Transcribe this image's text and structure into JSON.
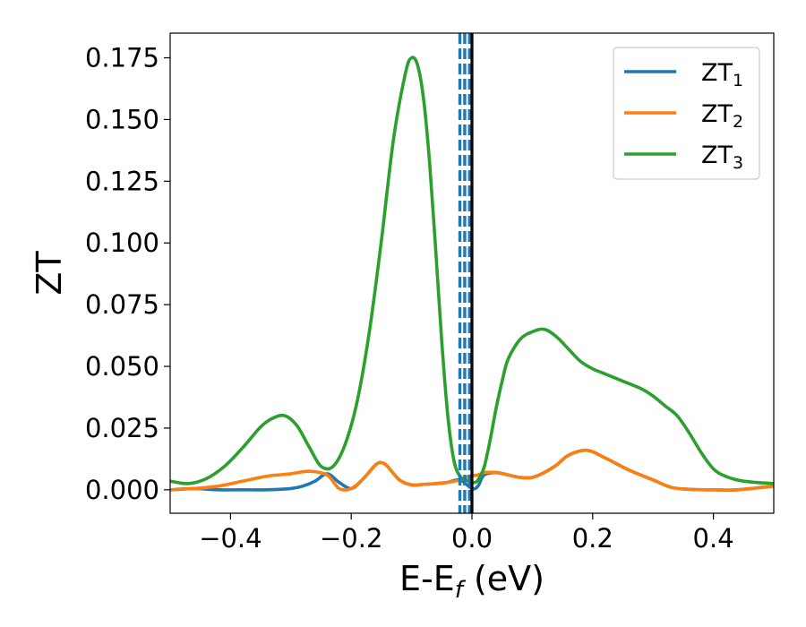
{
  "chart_data": {
    "type": "line",
    "xlabel": "E-E",
    "xlabel_sub": "f",
    "xlabel_unit": " (eV)",
    "ylabel": "ZT",
    "xlim": [
      -0.5,
      0.5
    ],
    "ylim": [
      -0.0095,
      0.185
    ],
    "xticks": [
      -0.4,
      -0.2,
      0.0,
      0.2,
      0.4
    ],
    "xtick_labels": [
      "−0.4",
      "−0.2",
      "0.0",
      "0.2",
      "0.4"
    ],
    "yticks": [
      0.0,
      0.025,
      0.05,
      0.075,
      0.1,
      0.125,
      0.15,
      0.175
    ],
    "ytick_labels": [
      "0.000",
      "0.025",
      "0.050",
      "0.075",
      "0.100",
      "0.125",
      "0.150",
      "0.175"
    ],
    "grid": false,
    "legend_position": "top-right",
    "vertical_lines": [
      {
        "x": -0.02,
        "style": "dashed",
        "color": "#1f77b4"
      },
      {
        "x": -0.012,
        "style": "dashed",
        "color": "#1f77b4"
      },
      {
        "x": -0.004,
        "style": "dashed",
        "color": "#1f77b4"
      },
      {
        "x": 0.0,
        "style": "solid",
        "color": "#000000"
      }
    ],
    "series": [
      {
        "name": "ZT",
        "sub": "1",
        "color": "#1f77b4",
        "x": [
          -0.5,
          -0.46,
          -0.42,
          -0.38,
          -0.34,
          -0.3,
          -0.28,
          -0.26,
          -0.24,
          -0.22,
          -0.2,
          -0.18,
          -0.16,
          -0.15,
          -0.14,
          -0.12,
          -0.1,
          -0.08,
          -0.06,
          -0.04,
          -0.02,
          0.0,
          0.01,
          0.02,
          0.04,
          0.06,
          0.08,
          0.1,
          0.12,
          0.14,
          0.16,
          0.19,
          0.22,
          0.26,
          0.3,
          0.33,
          0.36,
          0.4,
          0.44,
          0.5
        ],
        "y": [
          0.0,
          0.0005,
          0.0,
          0.0,
          0.0,
          0.0005,
          0.0015,
          0.0035,
          0.0065,
          0.003,
          0.0005,
          0.0045,
          0.01,
          0.011,
          0.0095,
          0.004,
          0.002,
          0.0022,
          0.0025,
          0.003,
          0.004,
          0.0005,
          0.0015,
          0.006,
          0.007,
          0.006,
          0.005,
          0.005,
          0.007,
          0.01,
          0.014,
          0.016,
          0.013,
          0.008,
          0.004,
          0.001,
          0.0002,
          0.0,
          0.0,
          0.0015
        ]
      },
      {
        "name": "ZT",
        "sub": "2",
        "color": "#ff7f0e",
        "x": [
          -0.5,
          -0.46,
          -0.42,
          -0.38,
          -0.34,
          -0.3,
          -0.27,
          -0.24,
          -0.22,
          -0.2,
          -0.18,
          -0.16,
          -0.15,
          -0.14,
          -0.12,
          -0.1,
          -0.08,
          -0.06,
          -0.04,
          -0.02,
          -0.005,
          0.01,
          0.02,
          0.04,
          0.06,
          0.08,
          0.1,
          0.12,
          0.14,
          0.16,
          0.19,
          0.22,
          0.26,
          0.3,
          0.33,
          0.36,
          0.4,
          0.44,
          0.5
        ],
        "y": [
          0.0,
          0.0005,
          0.0015,
          0.0035,
          0.0055,
          0.0065,
          0.0075,
          0.006,
          0.0005,
          0.0005,
          0.0045,
          0.01,
          0.011,
          0.0095,
          0.004,
          0.002,
          0.0022,
          0.0025,
          0.003,
          0.004,
          0.0055,
          0.006,
          0.007,
          0.007,
          0.006,
          0.005,
          0.005,
          0.007,
          0.01,
          0.014,
          0.016,
          0.013,
          0.008,
          0.004,
          0.001,
          0.0002,
          0.0,
          0.0,
          0.0015
        ]
      },
      {
        "name": "ZT",
        "sub": "3",
        "color": "#2ca02c",
        "x": [
          -0.5,
          -0.47,
          -0.44,
          -0.41,
          -0.38,
          -0.35,
          -0.33,
          -0.31,
          -0.29,
          -0.27,
          -0.25,
          -0.23,
          -0.21,
          -0.19,
          -0.17,
          -0.15,
          -0.13,
          -0.11,
          -0.1,
          -0.09,
          -0.08,
          -0.07,
          -0.06,
          -0.05,
          -0.04,
          -0.03,
          -0.02,
          -0.01,
          0.0,
          0.005,
          0.01,
          0.02,
          0.03,
          0.04,
          0.05,
          0.06,
          0.08,
          0.1,
          0.12,
          0.14,
          0.16,
          0.18,
          0.2,
          0.22,
          0.25,
          0.28,
          0.3,
          0.32,
          0.34,
          0.36,
          0.38,
          0.4,
          0.42,
          0.45,
          0.5
        ],
        "y": [
          0.0035,
          0.0025,
          0.0045,
          0.0095,
          0.017,
          0.0255,
          0.029,
          0.03,
          0.026,
          0.0175,
          0.0095,
          0.0095,
          0.0185,
          0.036,
          0.064,
          0.101,
          0.142,
          0.169,
          0.175,
          0.172,
          0.158,
          0.132,
          0.097,
          0.06,
          0.03,
          0.012,
          0.0055,
          0.004,
          0.003,
          0.003,
          0.004,
          0.009,
          0.02,
          0.033,
          0.044,
          0.053,
          0.061,
          0.064,
          0.065,
          0.062,
          0.057,
          0.052,
          0.049,
          0.047,
          0.044,
          0.041,
          0.038,
          0.034,
          0.03,
          0.023,
          0.015,
          0.0085,
          0.0055,
          0.0035,
          0.0025
        ]
      }
    ]
  }
}
